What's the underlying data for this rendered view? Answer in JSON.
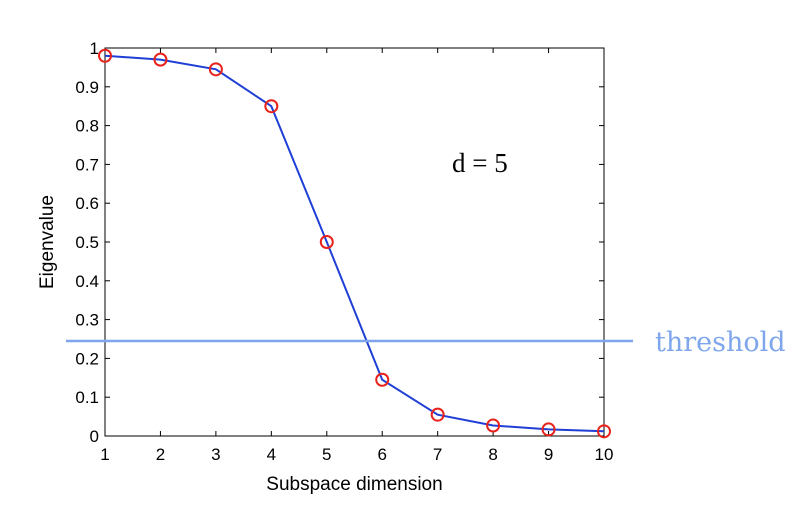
{
  "chart_data": {
    "type": "line",
    "x": [
      1,
      2,
      3,
      4,
      5,
      6,
      7,
      8,
      9,
      10
    ],
    "series": [
      {
        "values": [
          0.98,
          0.97,
          0.945,
          0.85,
          0.5,
          0.145,
          0.055,
          0.027,
          0.017,
          0.012
        ],
        "line_color": "#1f3fd6",
        "marker": "circle",
        "marker_color": "#e8231b"
      }
    ],
    "xlabel": "Subspace dimension",
    "ylabel": "Eigenvalue",
    "xlim": [
      1,
      10
    ],
    "ylim": [
      0,
      1
    ],
    "xticks": [
      "1",
      "2",
      "3",
      "4",
      "5",
      "6",
      "7",
      "8",
      "9",
      "10"
    ],
    "yticks": [
      "0",
      "0.1",
      "0.2",
      "0.3",
      "0.4",
      "0.5",
      "0.6",
      "0.7",
      "0.8",
      "0.9",
      "1"
    ],
    "grid": false,
    "annotation": "d = 5",
    "threshold": {
      "value": 0.245,
      "label": "threshold",
      "color": "#7fa6ec"
    }
  }
}
